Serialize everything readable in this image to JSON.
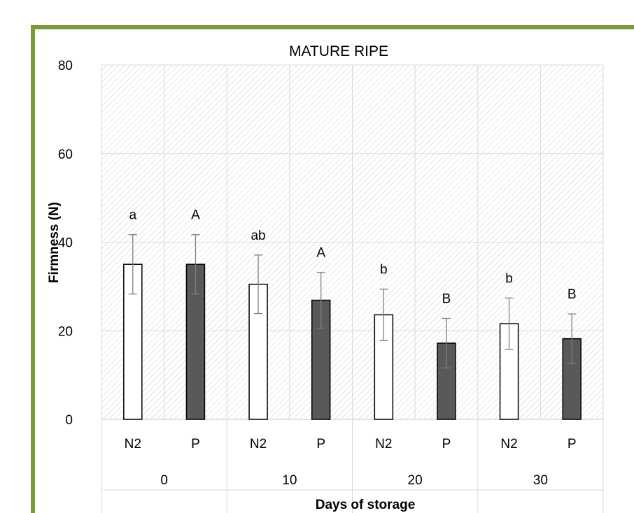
{
  "colors": {
    "frame_border": "#7a9a3e",
    "gridline": "#d9d9d9",
    "hatch": "#cfcfcf",
    "bar_n2": "#ffffff",
    "bar_p": "#595959",
    "bar_outline": "#000000",
    "error_bar": "#7f7f7f"
  },
  "chart_data": {
    "type": "bar",
    "title": "MATURE RIPE",
    "ylabel": "Firmness (N)",
    "xlabel": "Days of storage",
    "ylim": [
      0,
      80
    ],
    "yticks": [
      0,
      20,
      40,
      60,
      80
    ],
    "grid": true,
    "groups": [
      "0",
      "10",
      "20",
      "30"
    ],
    "categories": [
      "N2",
      "P",
      "N2",
      "P",
      "N2",
      "P",
      "N2",
      "P"
    ],
    "values": [
      35.0,
      35.0,
      30.5,
      26.9,
      23.6,
      17.2,
      21.6,
      18.2
    ],
    "errors": [
      6.7,
      6.7,
      6.6,
      6.3,
      5.8,
      5.6,
      5.8,
      5.6
    ],
    "letters": [
      "a",
      "A",
      "ab",
      "A",
      "b",
      "B",
      "b",
      "B"
    ],
    "series": [
      {
        "key": "N2",
        "color": "#ffffff"
      },
      {
        "key": "P",
        "color": "#595959"
      }
    ]
  }
}
